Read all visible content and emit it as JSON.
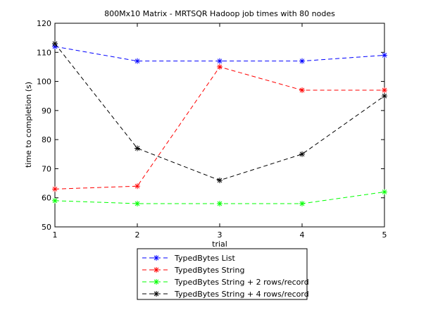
{
  "chart_data": {
    "type": "line",
    "title": "800Mx10 Matrix - MRTSQR Hadoop job times with 80 nodes",
    "xlabel": "trial",
    "ylabel": "time to completion (s)",
    "xlim": [
      1,
      5
    ],
    "ylim": [
      50,
      120
    ],
    "x_ticks": [
      "1",
      "2",
      "3",
      "4",
      "5"
    ],
    "y_ticks": [
      "50",
      "60",
      "70",
      "80",
      "90",
      "100",
      "110",
      "120"
    ],
    "x": [
      1,
      2,
      3,
      4,
      5
    ],
    "grid": false,
    "legend_position": "below",
    "series": [
      {
        "name": "TypedBytes List",
        "color": "#0000ff",
        "marker": "asterisk",
        "line_style": "dashed",
        "values": [
          112,
          107,
          107,
          107,
          109
        ]
      },
      {
        "name": "TypedBytes String",
        "color": "#ff0000",
        "marker": "asterisk",
        "line_style": "dashed",
        "values": [
          63,
          64,
          105,
          97,
          97
        ]
      },
      {
        "name": "TypedBytes String + 2 rows/record",
        "color": "#00ff00",
        "marker": "asterisk",
        "line_style": "dashed",
        "values": [
          59,
          58,
          58,
          58,
          62
        ]
      },
      {
        "name": "TypedBytes String + 4 rows/record",
        "color": "#000000",
        "marker": "asterisk",
        "line_style": "dashed",
        "values": [
          113,
          77,
          66,
          75,
          95
        ]
      }
    ]
  }
}
